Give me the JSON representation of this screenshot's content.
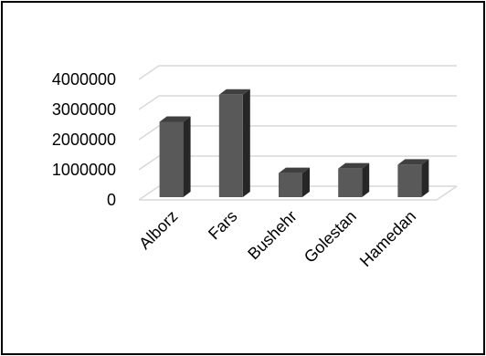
{
  "chart_data": {
    "type": "bar",
    "style": "3d-column",
    "title": "",
    "xlabel": "",
    "ylabel": "",
    "categories": [
      "Alborz",
      "Fars",
      "Bushehr",
      "Golestan",
      "Hamedan"
    ],
    "values": [
      2500000,
      3400000,
      800000,
      950000,
      1080000
    ],
    "ylim": [
      0,
      4000000
    ],
    "yticks": [
      "0",
      "1000000",
      "2000000",
      "3000000",
      "4000000"
    ],
    "grid": true,
    "legend": "none",
    "colors": {
      "bar_front": "#595959",
      "bar_side": "#262626",
      "bar_top": "#404040",
      "grid": "#d9d9d9"
    }
  }
}
